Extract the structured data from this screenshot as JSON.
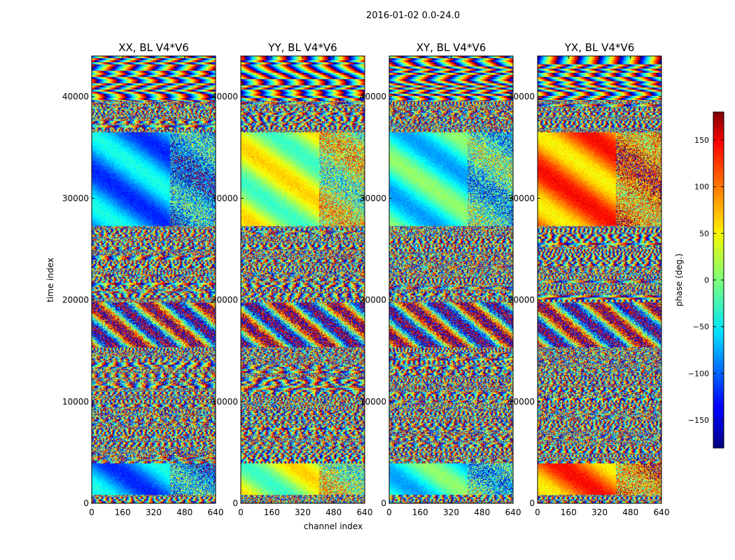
{
  "figure": {
    "suptitle": "2016-01-02 0.0-24.0"
  },
  "chart_data": {
    "type": "heatmap",
    "suptitle": "2016-01-02 0.0-24.0",
    "xlabel": "channel index",
    "ylabel": "time index",
    "xlim": [
      0,
      640
    ],
    "ylim": [
      0,
      44000
    ],
    "x_ticks": [
      0,
      160,
      320,
      480,
      640
    ],
    "y_ticks": [
      0,
      10000,
      20000,
      30000,
      40000
    ],
    "colormap": "jet",
    "colorbar": {
      "label": "phase (deg.)",
      "range": [
        -180,
        180
      ],
      "ticks": [
        -150,
        -100,
        -50,
        0,
        50,
        100,
        150
      ]
    },
    "panels": [
      {
        "title": "XX, BL V4*V6",
        "polarization": "XX"
      },
      {
        "title": "YY, BL V4*V6",
        "polarization": "YY"
      },
      {
        "title": "XY, BL V4*V6",
        "polarization": "XY"
      },
      {
        "title": "YX, BL V4*V6",
        "polarization": "YX"
      }
    ]
  }
}
